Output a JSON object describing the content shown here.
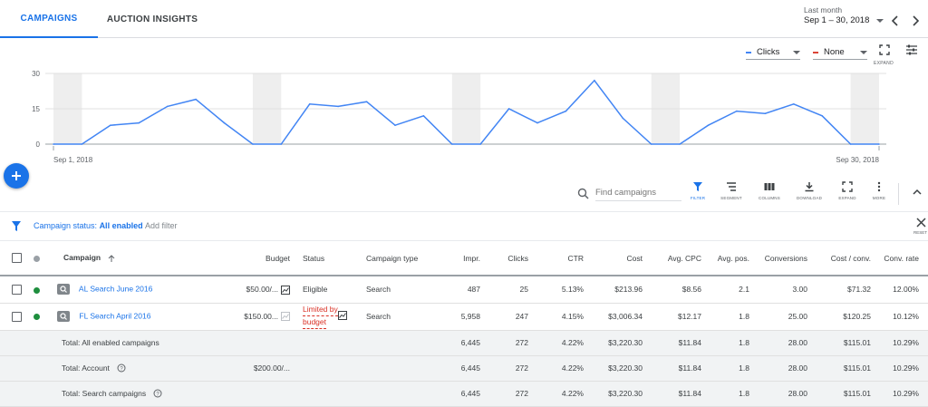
{
  "tabs": [
    {
      "label": "CAMPAIGNS"
    },
    {
      "label": "AUCTION INSIGHTS"
    }
  ],
  "date_range": {
    "preset": "Last month",
    "value": "Sep 1 – 30, 2018"
  },
  "chart_controls": {
    "metric1": {
      "label": "Clicks",
      "color": "#4285f4"
    },
    "metric2": {
      "label": "None",
      "color": "#db4437"
    },
    "expand_label": "EXPAND"
  },
  "chart_data": {
    "type": "line",
    "title": "",
    "x_start_label": "Sep 1, 2018",
    "x_end_label": "Sep 30, 2018",
    "yticks": [
      "30",
      "15",
      "0"
    ],
    "ylim": [
      0,
      30
    ],
    "x": [
      1,
      2,
      3,
      4,
      5,
      6,
      7,
      8,
      9,
      10,
      11,
      12,
      13,
      14,
      15,
      16,
      17,
      18,
      19,
      20,
      21,
      22,
      23,
      24,
      25,
      26,
      27,
      28,
      29,
      30
    ],
    "series": [
      {
        "values": [
          0,
          0,
          8,
          9,
          16,
          19,
          9,
          0,
          0,
          17,
          16,
          18,
          8,
          12,
          0,
          0,
          15,
          9,
          14,
          27,
          11,
          0,
          0,
          8,
          14,
          13,
          17,
          12,
          0,
          0
        ]
      }
    ],
    "shaded_days": [
      1,
      8,
      15,
      22,
      29
    ],
    "color": "#4285f4"
  },
  "toolbar": {
    "search_placeholder": "Find campaigns",
    "tools": [
      {
        "label": "FILTER"
      },
      {
        "label": "SEGMENT"
      },
      {
        "label": "COLUMNS"
      },
      {
        "label": "DOWNLOAD"
      },
      {
        "label": "EXPAND"
      },
      {
        "label": "MORE"
      }
    ]
  },
  "filter": {
    "label": "Campaign status:",
    "value": "All enabled",
    "add": "Add filter",
    "reset": "RESET"
  },
  "table": {
    "columns": [
      "Campaign",
      "Budget",
      "Status",
      "Campaign type",
      "Impr.",
      "Clicks",
      "CTR",
      "Cost",
      "Avg. CPC",
      "Avg. pos.",
      "Conversions",
      "Cost / conv.",
      "Conv. rate"
    ],
    "rows": [
      {
        "name": "AL Search June 2016",
        "budget": "$50.00/...",
        "status": "Eligible",
        "type": "Search",
        "impr": "487",
        "clicks": "25",
        "ctr": "5.13%",
        "cost": "$213.96",
        "cpc": "$8.56",
        "pos": "2.1",
        "conv": "3.00",
        "cost_conv": "$71.32",
        "conv_rate": "12.00%"
      },
      {
        "name": "FL Search April 2016",
        "budget": "$150.00...",
        "status_line1": "Limited by",
        "status_line2": "budget",
        "type": "Search",
        "impr": "5,958",
        "clicks": "247",
        "ctr": "4.15%",
        "cost": "$3,006.34",
        "cpc": "$12.17",
        "pos": "1.8",
        "conv": "25.00",
        "cost_conv": "$120.25",
        "conv_rate": "10.12%"
      }
    ],
    "totals": [
      {
        "label": "Total: All enabled campaigns",
        "budget": "",
        "impr": "6,445",
        "clicks": "272",
        "ctr": "4.22%",
        "cost": "$3,220.30",
        "cpc": "$11.84",
        "pos": "1.8",
        "conv": "28.00",
        "cost_conv": "$115.01",
        "conv_rate": "10.29%"
      },
      {
        "label": "Total: Account",
        "budget": "$200.00/...",
        "impr": "6,445",
        "clicks": "272",
        "ctr": "4.22%",
        "cost": "$3,220.30",
        "cpc": "$11.84",
        "pos": "1.8",
        "conv": "28.00",
        "cost_conv": "$115.01",
        "conv_rate": "10.29%"
      },
      {
        "label": "Total: Search campaigns",
        "budget": "",
        "impr": "6,445",
        "clicks": "272",
        "ctr": "4.22%",
        "cost": "$3,220.30",
        "cpc": "$11.84",
        "pos": "1.8",
        "conv": "28.00",
        "cost_conv": "$115.01",
        "conv_rate": "10.29%"
      }
    ]
  }
}
